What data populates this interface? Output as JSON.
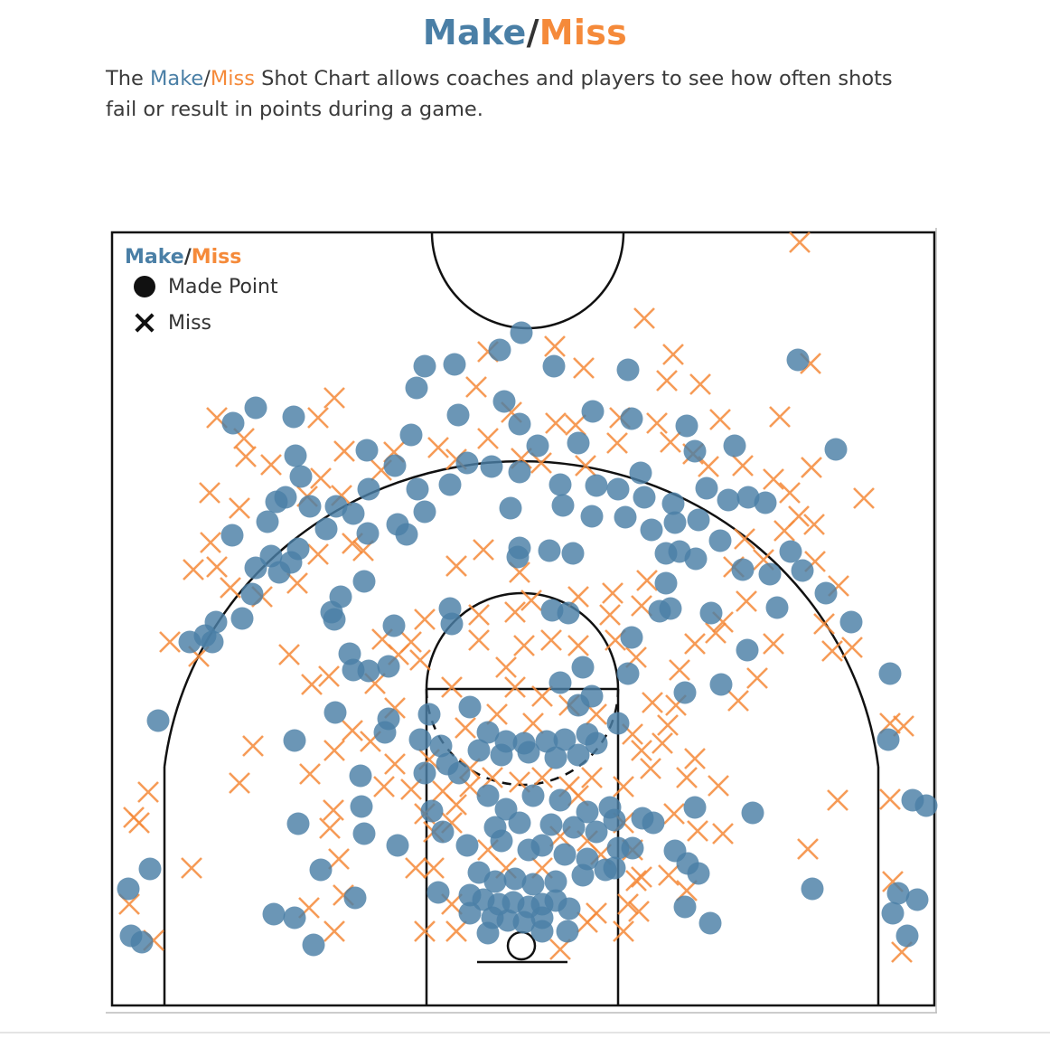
{
  "header": {
    "title_make": "Make",
    "title_slash": "/",
    "title_miss": "Miss",
    "desc_pre": "The ",
    "desc_make": "Make",
    "desc_slash": "/",
    "desc_miss": "Miss",
    "desc_post": " Shot Chart allows coaches and players to see how often shots fail or result in points during a game."
  },
  "legend": {
    "title_make": "Make",
    "title_slash": "/",
    "title_miss": "Miss",
    "made_label": "Made Point",
    "miss_label": "Miss"
  },
  "colors": {
    "make": "#4a7fa6",
    "miss": "#f58a3a",
    "court_line": "#111111"
  },
  "chart_data": {
    "type": "scatter",
    "title": "",
    "xlabel": "",
    "ylabel": "",
    "grid": false,
    "legend_position": "top-left",
    "series": [
      {
        "name": "Made Point",
        "marker": "circle"
      },
      {
        "name": "Miss",
        "marker": "x"
      }
    ],
    "made": [
      [
        577,
        368
      ],
      [
        553,
        387
      ],
      [
        470,
        405
      ],
      [
        503,
        403
      ],
      [
        461,
        429
      ],
      [
        613,
        405
      ],
      [
        695,
        409
      ],
      [
        883,
        398
      ],
      [
        283,
        451
      ],
      [
        258,
        468
      ],
      [
        325,
        461
      ],
      [
        507,
        459
      ],
      [
        558,
        444
      ],
      [
        575,
        469
      ],
      [
        656,
        455
      ],
      [
        699,
        463
      ],
      [
        760,
        471
      ],
      [
        769,
        499
      ],
      [
        813,
        493
      ],
      [
        925,
        497
      ],
      [
        406,
        498
      ],
      [
        455,
        481
      ],
      [
        595,
        493
      ],
      [
        640,
        490
      ],
      [
        327,
        504
      ],
      [
        333,
        527
      ],
      [
        306,
        555
      ],
      [
        296,
        577
      ],
      [
        257,
        592
      ],
      [
        316,
        550
      ],
      [
        343,
        560
      ],
      [
        372,
        560
      ],
      [
        391,
        568
      ],
      [
        408,
        541
      ],
      [
        437,
        515
      ],
      [
        462,
        541
      ],
      [
        498,
        536
      ],
      [
        517,
        512
      ],
      [
        544,
        516
      ],
      [
        575,
        522
      ],
      [
        620,
        536
      ],
      [
        660,
        537
      ],
      [
        684,
        541
      ],
      [
        709,
        523
      ],
      [
        713,
        550
      ],
      [
        745,
        557
      ],
      [
        782,
        540
      ],
      [
        806,
        553
      ],
      [
        828,
        550
      ],
      [
        847,
        556
      ],
      [
        565,
        562
      ],
      [
        623,
        559
      ],
      [
        655,
        571
      ],
      [
        692,
        572
      ],
      [
        721,
        586
      ],
      [
        747,
        578
      ],
      [
        773,
        575
      ],
      [
        797,
        598
      ],
      [
        361,
        585
      ],
      [
        330,
        607
      ],
      [
        300,
        615
      ],
      [
        283,
        628
      ],
      [
        279,
        657
      ],
      [
        268,
        684
      ],
      [
        309,
        633
      ],
      [
        322,
        622
      ],
      [
        407,
        590
      ],
      [
        440,
        580
      ],
      [
        470,
        566
      ],
      [
        450,
        591
      ],
      [
        575,
        606
      ],
      [
        608,
        609
      ],
      [
        634,
        612
      ],
      [
        573,
        616
      ],
      [
        737,
        612
      ],
      [
        752,
        610
      ],
      [
        770,
        618
      ],
      [
        822,
        630
      ],
      [
        852,
        635
      ],
      [
        875,
        610
      ],
      [
        888,
        631
      ],
      [
        914,
        656
      ],
      [
        860,
        672
      ],
      [
        942,
        688
      ],
      [
        737,
        645
      ],
      [
        742,
        673
      ],
      [
        730,
        676
      ],
      [
        403,
        643
      ],
      [
        377,
        660
      ],
      [
        370,
        685
      ],
      [
        367,
        677
      ],
      [
        436,
        692
      ],
      [
        498,
        673
      ],
      [
        500,
        690
      ],
      [
        611,
        675
      ],
      [
        629,
        678
      ],
      [
        699,
        705
      ],
      [
        695,
        745
      ],
      [
        645,
        738
      ],
      [
        758,
        766
      ],
      [
        798,
        757
      ],
      [
        827,
        719
      ],
      [
        787,
        678
      ],
      [
        210,
        710
      ],
      [
        227,
        703
      ],
      [
        239,
        688
      ],
      [
        235,
        710
      ],
      [
        387,
        723
      ],
      [
        391,
        741
      ],
      [
        408,
        742
      ],
      [
        430,
        737
      ],
      [
        371,
        788
      ],
      [
        430,
        795
      ],
      [
        426,
        810
      ],
      [
        326,
        819
      ],
      [
        399,
        858
      ],
      [
        400,
        892
      ],
      [
        403,
        922
      ],
      [
        330,
        911
      ],
      [
        355,
        962
      ],
      [
        393,
        993
      ],
      [
        303,
        1011
      ],
      [
        326,
        1015
      ],
      [
        347,
        1045
      ],
      [
        166,
        961
      ],
      [
        142,
        983
      ],
      [
        145,
        1035
      ],
      [
        157,
        1042
      ],
      [
        175,
        797
      ],
      [
        520,
        782
      ],
      [
        540,
        810
      ],
      [
        560,
        820
      ],
      [
        580,
        822
      ],
      [
        605,
        820
      ],
      [
        625,
        818
      ],
      [
        650,
        812
      ],
      [
        530,
        830
      ],
      [
        555,
        835
      ],
      [
        585,
        832
      ],
      [
        615,
        838
      ],
      [
        640,
        835
      ],
      [
        660,
        822
      ],
      [
        508,
        855
      ],
      [
        495,
        845
      ],
      [
        470,
        855
      ],
      [
        488,
        825
      ],
      [
        540,
        880
      ],
      [
        560,
        895
      ],
      [
        590,
        880
      ],
      [
        620,
        885
      ],
      [
        650,
        898
      ],
      [
        675,
        893
      ],
      [
        548,
        915
      ],
      [
        575,
        910
      ],
      [
        610,
        912
      ],
      [
        635,
        915
      ],
      [
        660,
        920
      ],
      [
        680,
        907
      ],
      [
        555,
        930
      ],
      [
        585,
        940
      ],
      [
        600,
        935
      ],
      [
        625,
        945
      ],
      [
        650,
        950
      ],
      [
        530,
        965
      ],
      [
        548,
        975
      ],
      [
        570,
        972
      ],
      [
        590,
        978
      ],
      [
        615,
        975
      ],
      [
        645,
        968
      ],
      [
        670,
        962
      ],
      [
        520,
        990
      ],
      [
        535,
        995
      ],
      [
        552,
        1000
      ],
      [
        568,
        998
      ],
      [
        585,
        1003
      ],
      [
        600,
        1000
      ],
      [
        615,
        996
      ],
      [
        630,
        1005
      ],
      [
        545,
        1015
      ],
      [
        562,
        1018
      ],
      [
        580,
        1020
      ],
      [
        600,
        1015
      ],
      [
        520,
        1010
      ],
      [
        540,
        1032
      ],
      [
        600,
        1030
      ],
      [
        628,
        1030
      ],
      [
        485,
        987
      ],
      [
        640,
        780
      ],
      [
        655,
        770
      ],
      [
        684,
        800
      ],
      [
        620,
        755
      ],
      [
        711,
        905
      ],
      [
        723,
        910
      ],
      [
        769,
        893
      ],
      [
        747,
        941
      ],
      [
        761,
        955
      ],
      [
        773,
        966
      ],
      [
        758,
        1003
      ],
      [
        786,
        1021
      ],
      [
        833,
        899
      ],
      [
        899,
        983
      ],
      [
        985,
        745
      ],
      [
        983,
        818
      ],
      [
        1010,
        885
      ],
      [
        1025,
        891
      ],
      [
        994,
        988
      ],
      [
        1015,
        995
      ],
      [
        988,
        1010
      ],
      [
        1004,
        1035
      ],
      [
        478,
        897
      ],
      [
        490,
        920
      ],
      [
        440,
        935
      ],
      [
        517,
        935
      ],
      [
        684,
        938
      ],
      [
        700,
        938
      ],
      [
        680,
        960
      ],
      [
        465,
        818
      ],
      [
        475,
        790
      ]
    ],
    "miss": [
      [
        885,
        268
      ],
      [
        713,
        352
      ],
      [
        614,
        383
      ],
      [
        540,
        389
      ],
      [
        646,
        407
      ],
      [
        745,
        392
      ],
      [
        738,
        421
      ],
      [
        775,
        425
      ],
      [
        897,
        402
      ],
      [
        527,
        428
      ],
      [
        566,
        456
      ],
      [
        615,
        468
      ],
      [
        637,
        470
      ],
      [
        686,
        462
      ],
      [
        727,
        468
      ],
      [
        797,
        464
      ],
      [
        863,
        461
      ],
      [
        370,
        440
      ],
      [
        352,
        462
      ],
      [
        381,
        499
      ],
      [
        240,
        462
      ],
      [
        270,
        485
      ],
      [
        272,
        505
      ],
      [
        300,
        514
      ],
      [
        232,
        545
      ],
      [
        265,
        562
      ],
      [
        214,
        630
      ],
      [
        240,
        627
      ],
      [
        255,
        650
      ],
      [
        233,
        600
      ],
      [
        290,
        660
      ],
      [
        188,
        710
      ],
      [
        220,
        726
      ],
      [
        355,
        529
      ],
      [
        340,
        549
      ],
      [
        390,
        601
      ],
      [
        402,
        609
      ],
      [
        352,
        613
      ],
      [
        329,
        645
      ],
      [
        378,
        548
      ],
      [
        422,
        520
      ],
      [
        436,
        500
      ],
      [
        485,
        495
      ],
      [
        505,
        508
      ],
      [
        540,
        485
      ],
      [
        577,
        507
      ],
      [
        599,
        512
      ],
      [
        648,
        515
      ],
      [
        683,
        490
      ],
      [
        742,
        489
      ],
      [
        767,
        502
      ],
      [
        784,
        516
      ],
      [
        822,
        515
      ],
      [
        856,
        530
      ],
      [
        874,
        545
      ],
      [
        898,
        517
      ],
      [
        956,
        551
      ],
      [
        884,
        571
      ],
      [
        901,
        580
      ],
      [
        868,
        587
      ],
      [
        824,
        596
      ],
      [
        812,
        627
      ],
      [
        845,
        619
      ],
      [
        902,
        621
      ],
      [
        928,
        648
      ],
      [
        912,
        690
      ],
      [
        921,
        720
      ],
      [
        943,
        716
      ],
      [
        826,
        665
      ],
      [
        856,
        712
      ],
      [
        838,
        750
      ],
      [
        817,
        775
      ],
      [
        792,
        700
      ],
      [
        769,
        712
      ],
      [
        800,
        688
      ],
      [
        752,
        741
      ],
      [
        739,
        802
      ],
      [
        733,
        822
      ],
      [
        760,
        860
      ],
      [
        769,
        839
      ],
      [
        795,
        869
      ],
      [
        746,
        900
      ],
      [
        772,
        919
      ],
      [
        800,
        922
      ],
      [
        740,
        968
      ],
      [
        760,
        985
      ],
      [
        704,
        974
      ],
      [
        695,
        1000
      ],
      [
        707,
        1008
      ],
      [
        927,
        885
      ],
      [
        894,
        939
      ],
      [
        985,
        800
      ],
      [
        1000,
        803
      ],
      [
        985,
        884
      ],
      [
        988,
        975
      ],
      [
        998,
        1053
      ],
      [
        505,
        626
      ],
      [
        535,
        608
      ],
      [
        575,
        633
      ],
      [
        588,
        664
      ],
      [
        640,
        660
      ],
      [
        678,
        656
      ],
      [
        716,
        642
      ],
      [
        675,
        680
      ],
      [
        710,
        670
      ],
      [
        455,
        710
      ],
      [
        470,
        685
      ],
      [
        530,
        680
      ],
      [
        570,
        677
      ],
      [
        530,
        708
      ],
      [
        560,
        738
      ],
      [
        580,
        714
      ],
      [
        610,
        708
      ],
      [
        640,
        714
      ],
      [
        681,
        708
      ],
      [
        704,
        727
      ],
      [
        722,
        777
      ],
      [
        748,
        780
      ],
      [
        320,
        724
      ],
      [
        345,
        757
      ],
      [
        364,
        748
      ],
      [
        423,
        707
      ],
      [
        441,
        724
      ],
      [
        465,
        730
      ],
      [
        415,
        756
      ],
      [
        437,
        783
      ],
      [
        410,
        820
      ],
      [
        437,
        845
      ],
      [
        455,
        873
      ],
      [
        470,
        900
      ],
      [
        425,
        870
      ],
      [
        390,
        808
      ],
      [
        370,
        830
      ],
      [
        343,
        856
      ],
      [
        369,
        896
      ],
      [
        280,
        825
      ],
      [
        265,
        866
      ],
      [
        365,
        916
      ],
      [
        375,
        950
      ],
      [
        380,
        990
      ],
      [
        370,
        1030
      ],
      [
        342,
        1004
      ],
      [
        212,
        960
      ],
      [
        164,
        876
      ],
      [
        148,
        904
      ],
      [
        154,
        910
      ],
      [
        143,
        1000
      ],
      [
        170,
        1040
      ],
      [
        500,
        760
      ],
      [
        515,
        805
      ],
      [
        550,
        790
      ],
      [
        570,
        760
      ],
      [
        600,
        770
      ],
      [
        630,
        780
      ],
      [
        660,
        790
      ],
      [
        700,
        812
      ],
      [
        710,
        830
      ],
      [
        720,
        850
      ],
      [
        475,
        840
      ],
      [
        490,
        875
      ],
      [
        505,
        890
      ],
      [
        520,
        870
      ],
      [
        545,
        860
      ],
      [
        575,
        865
      ],
      [
        600,
        860
      ],
      [
        630,
        870
      ],
      [
        655,
        860
      ],
      [
        690,
        870
      ],
      [
        480,
        920
      ],
      [
        500,
        910
      ],
      [
        540,
        940
      ],
      [
        560,
        960
      ],
      [
        600,
        960
      ],
      [
        620,
        925
      ],
      [
        650,
        930
      ],
      [
        665,
        945
      ],
      [
        690,
        910
      ],
      [
        700,
        940
      ],
      [
        480,
        960
      ],
      [
        500,
        1000
      ],
      [
        470,
        1030
      ],
      [
        505,
        1030
      ],
      [
        620,
        1050
      ],
      [
        650,
        1020
      ],
      [
        660,
        1010
      ],
      [
        690,
        1030
      ],
      [
        710,
        970
      ],
      [
        640,
        880
      ],
      [
        590,
        800
      ],
      [
        520,
        850
      ],
      [
        460,
        960
      ]
    ]
  }
}
